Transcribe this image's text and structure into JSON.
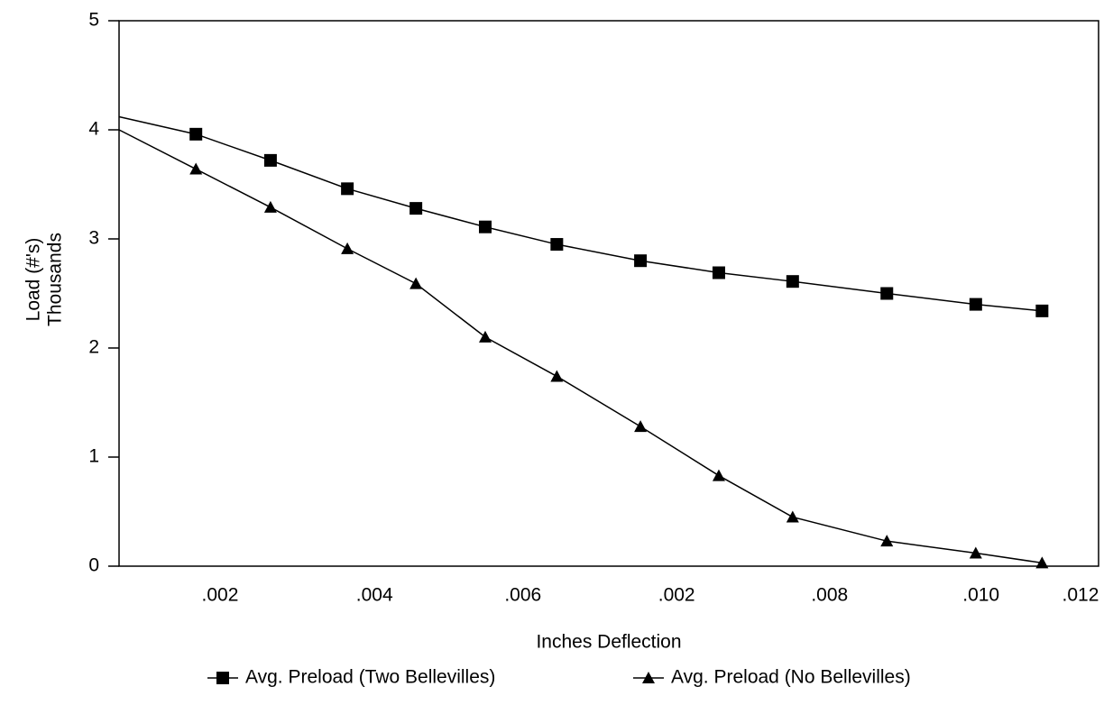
{
  "chart_data": {
    "type": "line",
    "x_label": "Inches Deflection",
    "y_label": [
      "Load (#'s)",
      "Thousands"
    ],
    "x": [
      0,
      1.02,
      2.01,
      3.03,
      3.94,
      4.86,
      5.81,
      6.92,
      7.96,
      8.94,
      10.19,
      11.37,
      12.25
    ],
    "xlim": [
      0,
      13
    ],
    "xticks": [
      {
        "value": 1.34,
        "label": ".002"
      },
      {
        "value": 3.39,
        "label": ".004"
      },
      {
        "value": 5.36,
        "label": ".006"
      },
      {
        "value": 7.4,
        "label": ".002"
      },
      {
        "value": 9.43,
        "label": ".008"
      },
      {
        "value": 11.44,
        "label": ".010"
      },
      {
        "value": 12.76,
        "label": ".012"
      }
    ],
    "ylim": [
      0,
      5
    ],
    "yticks": [
      0,
      1,
      2,
      3,
      4,
      5
    ],
    "series": [
      {
        "name": "Avg. Preload (Two Bellevilles)",
        "color": "#000000",
        "marker": "square",
        "values": [
          4.12,
          3.96,
          3.72,
          3.46,
          3.28,
          3.11,
          2.95,
          2.8,
          2.69,
          2.61,
          2.5,
          2.4,
          2.34
        ]
      },
      {
        "name": "Avg. Preload (No Bellevilles)",
        "color": "#000000",
        "marker": "triangle",
        "values": [
          4.0,
          3.64,
          3.29,
          2.91,
          2.59,
          2.1,
          1.74,
          1.28,
          0.83,
          0.45,
          0.23,
          0.12,
          0.03
        ]
      }
    ]
  }
}
